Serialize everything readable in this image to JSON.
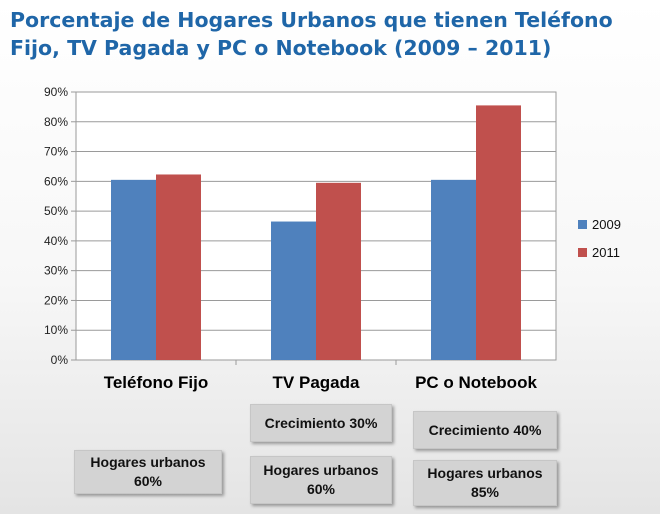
{
  "title": {
    "line1": "Porcentaje de Hogares Urbanos que tienen Teléfono",
    "line2": "Fijo, TV  Pagada y PC o Notebook (2009 – 2011)"
  },
  "chart_data": {
    "type": "bar",
    "title": "Porcentaje de Hogares Urbanos que tienen Teléfono Fijo, TV  Pagada y PC o Notebook (2009 – 2011)",
    "categories": [
      "Teléfono Fijo",
      "TV Pagada",
      "PC o Notebook"
    ],
    "series": [
      {
        "name": "2009",
        "values": [
          60.5,
          46.5,
          60.5
        ],
        "color": "#4f81bd"
      },
      {
        "name": "2011",
        "values": [
          62.3,
          59.5,
          85.5
        ],
        "color": "#c0504d"
      }
    ],
    "ylim": [
      0,
      90
    ],
    "yticks": [
      "0%",
      "10%",
      "20%",
      "30%",
      "40%",
      "50%",
      "60%",
      "70%",
      "80%",
      "90%"
    ],
    "xlabel": "",
    "ylabel": "",
    "grid": true,
    "legend": "right",
    "plot_background": "#ffffff"
  },
  "annotations": {
    "telefono_hogares": {
      "line1": "Hogares urbanos",
      "line2": "60%"
    },
    "tv_crecimiento": "Crecimiento 30%",
    "tv_hogares": {
      "line1": "Hogares urbanos",
      "line2": "60%"
    },
    "pc_crecimiento": "Crecimiento 40%",
    "pc_hogares": {
      "line1": "Hogares urbanos",
      "line2": "85%"
    }
  }
}
